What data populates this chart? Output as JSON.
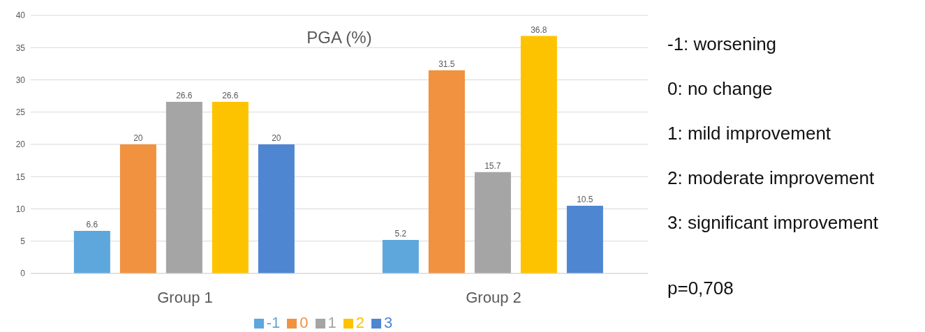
{
  "chart_data": {
    "type": "bar",
    "title": "PGA (%)",
    "categories": [
      "Group 1",
      "Group 2"
    ],
    "series": [
      {
        "name": "-1",
        "color": "#5ea7dd",
        "values": [
          6.6,
          5.2
        ]
      },
      {
        "name": "0",
        "color": "#f0923f",
        "values": [
          20,
          31.5
        ]
      },
      {
        "name": "1",
        "color": "#a5a5a5",
        "values": [
          26.6,
          15.7
        ]
      },
      {
        "name": "2",
        "color": "#fdc300",
        "values": [
          26.6,
          36.8
        ]
      },
      {
        "name": "3",
        "color": "#4f86d2",
        "values": [
          20,
          10.5
        ]
      }
    ],
    "ylim": [
      0,
      40
    ],
    "yticks": [
      0,
      5,
      10,
      15,
      20,
      25,
      30,
      35,
      40
    ],
    "grid": "y",
    "legend": "bottom",
    "data_labels": true,
    "annotations": [
      "-1: worsening",
      "0: no change",
      "1: mild improvement",
      "2: moderate improvement",
      "3: significant improvement",
      "p=0,708"
    ]
  }
}
